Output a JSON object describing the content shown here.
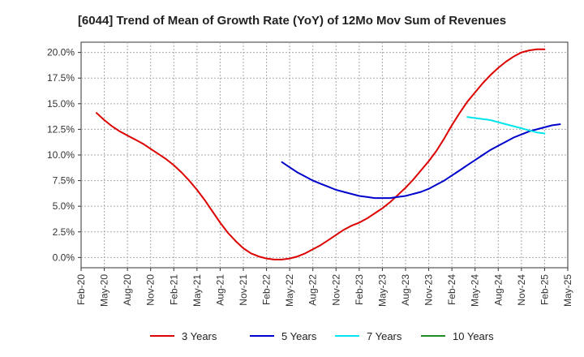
{
  "chart_data": {
    "type": "line",
    "title": "[6044]  Trend of Mean of Growth Rate (YoY) of 12Mo Mov Sum of Revenues",
    "xlabel": "",
    "ylabel": "",
    "x_ticks": [
      "Feb-20",
      "May-20",
      "Aug-20",
      "Nov-20",
      "Feb-21",
      "May-21",
      "Aug-21",
      "Nov-21",
      "Feb-22",
      "May-22",
      "Aug-22",
      "Nov-22",
      "Feb-23",
      "May-23",
      "Aug-23",
      "Nov-23",
      "Feb-24",
      "May-24",
      "Aug-24",
      "Nov-24",
      "Feb-25",
      "May-25"
    ],
    "y_ticks": [
      "0.0%",
      "2.5%",
      "5.0%",
      "7.5%",
      "10.0%",
      "12.5%",
      "15.0%",
      "17.5%",
      "20.0%"
    ],
    "ylim": [
      -1.0,
      21.0
    ],
    "y_unit": "%",
    "grid": true,
    "legend_position": "bottom",
    "series": [
      {
        "name": "3 Years",
        "color": "#dd0000",
        "points": [
          [
            "2020-04",
            14.1
          ],
          [
            "2020-05",
            13.4
          ],
          [
            "2020-06",
            12.8
          ],
          [
            "2020-07",
            12.3
          ],
          [
            "2020-08",
            11.9
          ],
          [
            "2020-09",
            11.5
          ],
          [
            "2020-10",
            11.1
          ],
          [
            "2020-11",
            10.6
          ],
          [
            "2020-12",
            10.1
          ],
          [
            "2021-01",
            9.6
          ],
          [
            "2021-02",
            9.0
          ],
          [
            "2021-03",
            8.3
          ],
          [
            "2021-04",
            7.5
          ],
          [
            "2021-05",
            6.6
          ],
          [
            "2021-06",
            5.6
          ],
          [
            "2021-07",
            4.5
          ],
          [
            "2021-08",
            3.4
          ],
          [
            "2021-09",
            2.4
          ],
          [
            "2021-10",
            1.6
          ],
          [
            "2021-11",
            0.9
          ],
          [
            "2021-12",
            0.4
          ],
          [
            "2022-01",
            0.1
          ],
          [
            "2022-02",
            -0.1
          ],
          [
            "2022-03",
            -0.2
          ],
          [
            "2022-04",
            -0.2
          ],
          [
            "2022-05",
            -0.1
          ],
          [
            "2022-06",
            0.1
          ],
          [
            "2022-07",
            0.4
          ],
          [
            "2022-08",
            0.8
          ],
          [
            "2022-09",
            1.2
          ],
          [
            "2022-10",
            1.7
          ],
          [
            "2022-11",
            2.2
          ],
          [
            "2022-12",
            2.7
          ],
          [
            "2023-01",
            3.1
          ],
          [
            "2023-02",
            3.4
          ],
          [
            "2023-03",
            3.8
          ],
          [
            "2023-04",
            4.3
          ],
          [
            "2023-05",
            4.8
          ],
          [
            "2023-06",
            5.4
          ],
          [
            "2023-07",
            6.1
          ],
          [
            "2023-08",
            6.8
          ],
          [
            "2023-09",
            7.6
          ],
          [
            "2023-10",
            8.5
          ],
          [
            "2023-11",
            9.4
          ],
          [
            "2023-12",
            10.4
          ],
          [
            "2024-01",
            11.6
          ],
          [
            "2024-02",
            12.9
          ],
          [
            "2024-03",
            14.1
          ],
          [
            "2024-04",
            15.2
          ],
          [
            "2024-05",
            16.1
          ],
          [
            "2024-06",
            17.0
          ],
          [
            "2024-07",
            17.8
          ],
          [
            "2024-08",
            18.5
          ],
          [
            "2024-09",
            19.1
          ],
          [
            "2024-10",
            19.6
          ],
          [
            "2024-11",
            20.0
          ],
          [
            "2024-12",
            20.2
          ],
          [
            "2025-01",
            20.3
          ],
          [
            "2025-02",
            20.3
          ]
        ]
      },
      {
        "name": "5 Years",
        "color": "#0000cc",
        "points": [
          [
            "2022-04",
            9.3
          ],
          [
            "2022-05",
            8.8
          ],
          [
            "2022-06",
            8.3
          ],
          [
            "2022-07",
            7.9
          ],
          [
            "2022-08",
            7.5
          ],
          [
            "2022-09",
            7.2
          ],
          [
            "2022-10",
            6.9
          ],
          [
            "2022-11",
            6.6
          ],
          [
            "2022-12",
            6.4
          ],
          [
            "2023-01",
            6.2
          ],
          [
            "2023-02",
            6.0
          ],
          [
            "2023-03",
            5.9
          ],
          [
            "2023-04",
            5.8
          ],
          [
            "2023-05",
            5.8
          ],
          [
            "2023-06",
            5.8
          ],
          [
            "2023-07",
            5.9
          ],
          [
            "2023-08",
            6.0
          ],
          [
            "2023-09",
            6.2
          ],
          [
            "2023-10",
            6.4
          ],
          [
            "2023-11",
            6.7
          ],
          [
            "2023-12",
            7.1
          ],
          [
            "2024-01",
            7.5
          ],
          [
            "2024-02",
            8.0
          ],
          [
            "2024-03",
            8.5
          ],
          [
            "2024-04",
            9.0
          ],
          [
            "2024-05",
            9.5
          ],
          [
            "2024-06",
            10.0
          ],
          [
            "2024-07",
            10.5
          ],
          [
            "2024-08",
            10.9
          ],
          [
            "2024-09",
            11.3
          ],
          [
            "2024-10",
            11.7
          ],
          [
            "2024-11",
            12.0
          ],
          [
            "2024-12",
            12.3
          ],
          [
            "2025-01",
            12.5
          ],
          [
            "2025-02",
            12.7
          ],
          [
            "2025-03",
            12.9
          ],
          [
            "2025-04",
            13.0
          ]
        ]
      },
      {
        "name": "7 Years",
        "color": "#00e5ee",
        "points": [
          [
            "2024-04",
            13.7
          ],
          [
            "2024-05",
            13.6
          ],
          [
            "2024-06",
            13.5
          ],
          [
            "2024-07",
            13.4
          ],
          [
            "2024-08",
            13.2
          ],
          [
            "2024-09",
            13.0
          ],
          [
            "2024-10",
            12.8
          ],
          [
            "2024-11",
            12.6
          ],
          [
            "2024-12",
            12.4
          ],
          [
            "2025-01",
            12.2
          ],
          [
            "2025-02",
            12.1
          ]
        ]
      },
      {
        "name": "10 Years",
        "color": "#228b22",
        "points": []
      }
    ]
  }
}
